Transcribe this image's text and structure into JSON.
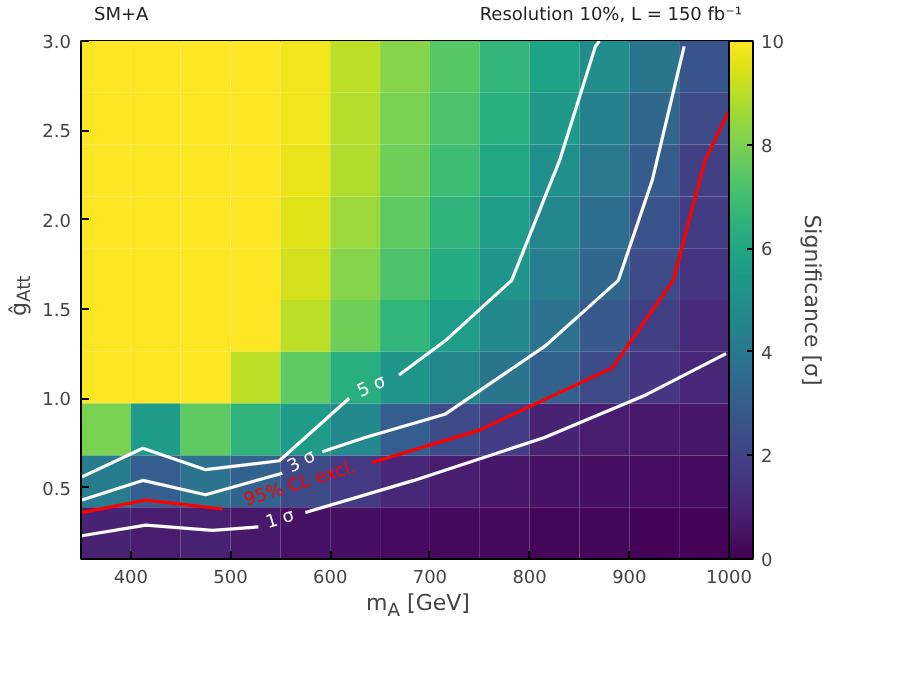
{
  "chart_data": {
    "type": "heatmap",
    "title": "SM+A",
    "subtitle": "Resolution 10%, L = 150 fb⁻¹",
    "xlabel": "m$_{A}$ [GeV]",
    "ylabel": "ĝ$_{Att}$",
    "clabel": "Significance [σ]",
    "x": [
      375,
      425,
      475,
      525,
      575,
      625,
      675,
      725,
      775,
      825,
      875,
      925,
      975
    ],
    "cells": [
      [
        10,
        10,
        10,
        10,
        9.8,
        9.0,
        8.2,
        7.4,
        6.6,
        5.8,
        4.9,
        3.9,
        2.6
      ],
      [
        10,
        10,
        10,
        10,
        9.8,
        8.9,
        8.0,
        7.2,
        6.3,
        5.4,
        4.4,
        3.3,
        2.3
      ],
      [
        10,
        10,
        10,
        10,
        9.7,
        8.8,
        7.8,
        6.9,
        6.0,
        5.0,
        4.0,
        2.9,
        1.9
      ],
      [
        10,
        10,
        10,
        10,
        9.5,
        8.5,
        7.5,
        6.5,
        5.6,
        4.6,
        3.6,
        2.6,
        1.8
      ],
      [
        10,
        10,
        10,
        10,
        9.3,
        8.2,
        7.2,
        6.2,
        5.2,
        4.3,
        3.3,
        2.3,
        1.5
      ],
      [
        10,
        10,
        10,
        10,
        9.0,
        7.8,
        6.6,
        5.6,
        4.7,
        3.8,
        2.8,
        1.9,
        1.2
      ],
      [
        10,
        10,
        10,
        9.0,
        7.5,
        6.3,
        5.3,
        4.6,
        3.9,
        3.1,
        2.3,
        1.6,
        1.1
      ],
      [
        8.0,
        5.5,
        7.5,
        6.5,
        5.5,
        4.8,
        3.0,
        2.3,
        1.8,
        1.0,
        0.8,
        0.7,
        0.6
      ],
      [
        4.2,
        3.0,
        3.8,
        3.2,
        2.3,
        1.7,
        1.1,
        0.8,
        0.6,
        0.5,
        0.4,
        0.35,
        0.3
      ],
      [
        1.0,
        0.8,
        0.9,
        0.7,
        0.5,
        0.4,
        0.3,
        0.25,
        0.2,
        0.15,
        0.12,
        0.1,
        0.1
      ]
    ],
    "clim": [
      0,
      10
    ],
    "cticks": [
      0,
      2,
      4,
      6,
      8,
      10
    ],
    "xlim": [
      350,
      1000
    ],
    "xticks": [
      400,
      500,
      600,
      700,
      800,
      900,
      1000
    ],
    "ylim": [
      0.1,
      3.0
    ],
    "yticks": [
      0.5,
      {
        "value": 1,
        "label": "1.0"
      },
      1.5,
      {
        "value": 2,
        "label": "2.0"
      },
      2.5,
      {
        "value": 3,
        "label": "3.0"
      }
    ],
    "series": [
      {
        "type": "line",
        "name": "5 σ",
        "color": "#ffffff",
        "x": [
          351,
          412,
          475,
          549,
          619,
          642,
          669,
          715,
          782,
          830,
          866,
          870
        ],
        "values": [
          0.56,
          0.72,
          0.6,
          0.65,
          1.0,
          null,
          1.13,
          1.32,
          1.66,
          2.33,
          2.97,
          3.0
        ]
      },
      {
        "type": "line",
        "name": "3 σ",
        "color": "#ffffff",
        "x": [
          351,
          412,
          475,
          552,
          572,
          592,
          635,
          715,
          815,
          889,
          923,
          955
        ],
        "values": [
          0.43,
          0.54,
          0.46,
          0.58,
          null,
          0.7,
          0.78,
          0.91,
          1.29,
          1.66,
          2.22,
          2.97
        ]
      },
      {
        "type": "line",
        "name": "95% CL excl.",
        "color": "#ff0000",
        "x": [
          351,
          415,
          492,
          570,
          642,
          749,
          883,
          944,
          976,
          1000
        ],
        "values": [
          0.36,
          0.43,
          0.38,
          null,
          0.64,
          0.82,
          1.17,
          1.66,
          2.33,
          2.61
        ]
      },
      {
        "type": "line",
        "name": "1 σ",
        "color": "#ffffff",
        "x": [
          351,
          415,
          482,
          528,
          550,
          575,
          684,
          815,
          917,
          997
        ],
        "values": [
          0.23,
          0.29,
          0.26,
          0.28,
          null,
          0.36,
          0.54,
          0.78,
          1.02,
          1.25
        ]
      }
    ]
  }
}
